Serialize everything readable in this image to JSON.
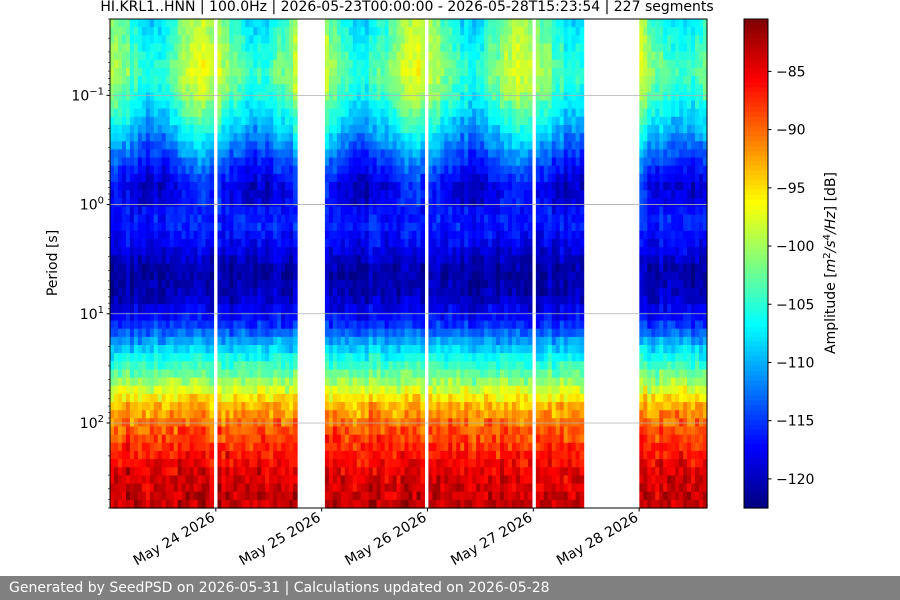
{
  "chart_data": {
    "type": "heatmap",
    "title": "HI.KRL1..HNN | 100.0Hz | 2026-05-23T00:00:00 - 2026-05-28T15:23:54 | 227 segments",
    "ylabel": "Period [s]",
    "y_scale": "log",
    "y_inverted": true,
    "ylim": [
      0.02,
      600
    ],
    "y_ticks": [
      {
        "value": 0.1,
        "base": "10",
        "exp": "−1"
      },
      {
        "value": 1,
        "base": "10",
        "exp": "0"
      },
      {
        "value": 10,
        "base": "10",
        "exp": "1"
      },
      {
        "value": 100,
        "base": "10",
        "exp": "2"
      }
    ],
    "xlim": [
      "2026-05-23T00:00:00",
      "2026-05-28T15:23:54"
    ],
    "x_ticks": [
      "May 24 2026",
      "May 25 2026",
      "May 26 2026",
      "May 27 2026",
      "May 28 2026"
    ],
    "grid": "horizontal",
    "colorbar": {
      "label": "Amplitude [m²/s⁴/Hz] [dB]",
      "range": [
        -122.5,
        -80.5
      ],
      "ticks": [
        -85,
        -90,
        -95,
        -100,
        -105,
        -110,
        -115,
        -120
      ],
      "colormap": "jet"
    },
    "data_gaps_days": [
      [
        0.97,
        1.0
      ],
      [
        1.78,
        2.02
      ],
      [
        2.97,
        3.02
      ],
      [
        3.97,
        4.02
      ],
      [
        4.48,
        5.0
      ],
      [
        5.51,
        5.54
      ]
    ],
    "mean_profile_db": [
      {
        "period": 0.02,
        "db": -104
      },
      {
        "period": 0.03,
        "db": -103
      },
      {
        "period": 0.06,
        "db": -101
      },
      {
        "period": 0.1,
        "db": -103
      },
      {
        "period": 0.2,
        "db": -108
      },
      {
        "period": 0.4,
        "db": -114
      },
      {
        "period": 0.7,
        "db": -118
      },
      {
        "period": 1.5,
        "db": -116
      },
      {
        "period": 2.5,
        "db": -118
      },
      {
        "period": 4,
        "db": -121
      },
      {
        "period": 7,
        "db": -120
      },
      {
        "period": 12,
        "db": -116
      },
      {
        "period": 20,
        "db": -109
      },
      {
        "period": 40,
        "db": -101
      },
      {
        "period": 70,
        "db": -93
      },
      {
        "period": 120,
        "db": -89
      },
      {
        "period": 250,
        "db": -85
      },
      {
        "period": 600,
        "db": -83
      }
    ]
  },
  "footer": {
    "text": "Generated by SeedPSD on 2026-05-31 | Calculations updated on 2026-05-28"
  }
}
